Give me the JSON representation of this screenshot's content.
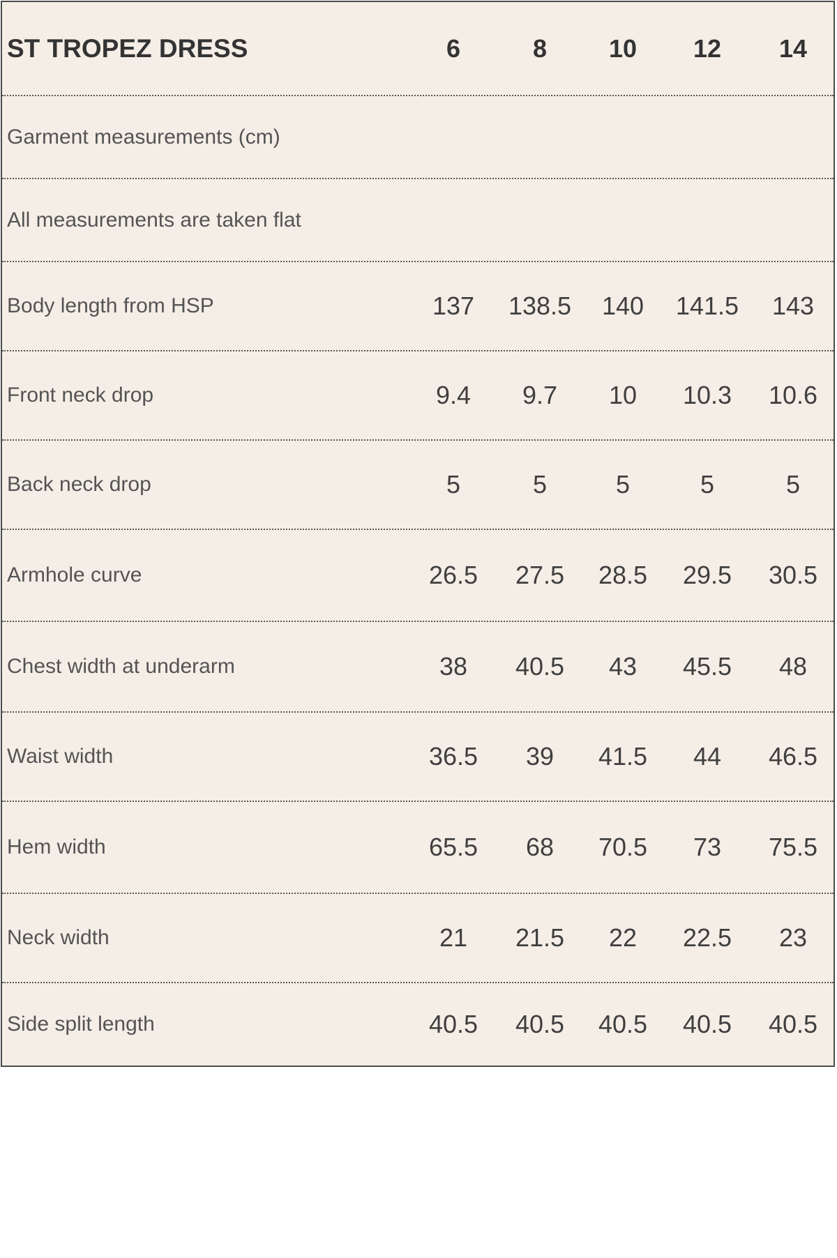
{
  "table": {
    "title": "ST TROPEZ DRESS",
    "sizes": [
      "6",
      "8",
      "10",
      "12",
      "14"
    ],
    "notes": [
      "Garment measurements (cm)",
      "All measurements are taken flat"
    ],
    "rows": [
      {
        "label": "Body length from HSP",
        "values": [
          "137",
          "138.5",
          "140",
          "141.5",
          "143"
        ]
      },
      {
        "label": "Front neck drop",
        "values": [
          "9.4",
          "9.7",
          "10",
          "10.3",
          "10.6"
        ]
      },
      {
        "label": "Back neck drop",
        "values": [
          "5",
          "5",
          "5",
          "5",
          "5"
        ]
      },
      {
        "label": "Armhole curve",
        "values": [
          "26.5",
          "27.5",
          "28.5",
          "29.5",
          "30.5"
        ]
      },
      {
        "label": "Chest width at underarm",
        "values": [
          "38",
          "40.5",
          "43",
          "45.5",
          "48"
        ]
      },
      {
        "label": "Waist width",
        "values": [
          "36.5",
          "39",
          "41.5",
          "44",
          "46.5"
        ]
      },
      {
        "label": "Hem width",
        "values": [
          "65.5",
          "68",
          "70.5",
          "73",
          "75.5"
        ]
      },
      {
        "label": "Neck width",
        "values": [
          "21",
          "21.5",
          "22",
          "22.5",
          "23"
        ]
      },
      {
        "label": "Side split length",
        "values": [
          "40.5",
          "40.5",
          "40.5",
          "40.5",
          "40.5"
        ]
      }
    ]
  }
}
